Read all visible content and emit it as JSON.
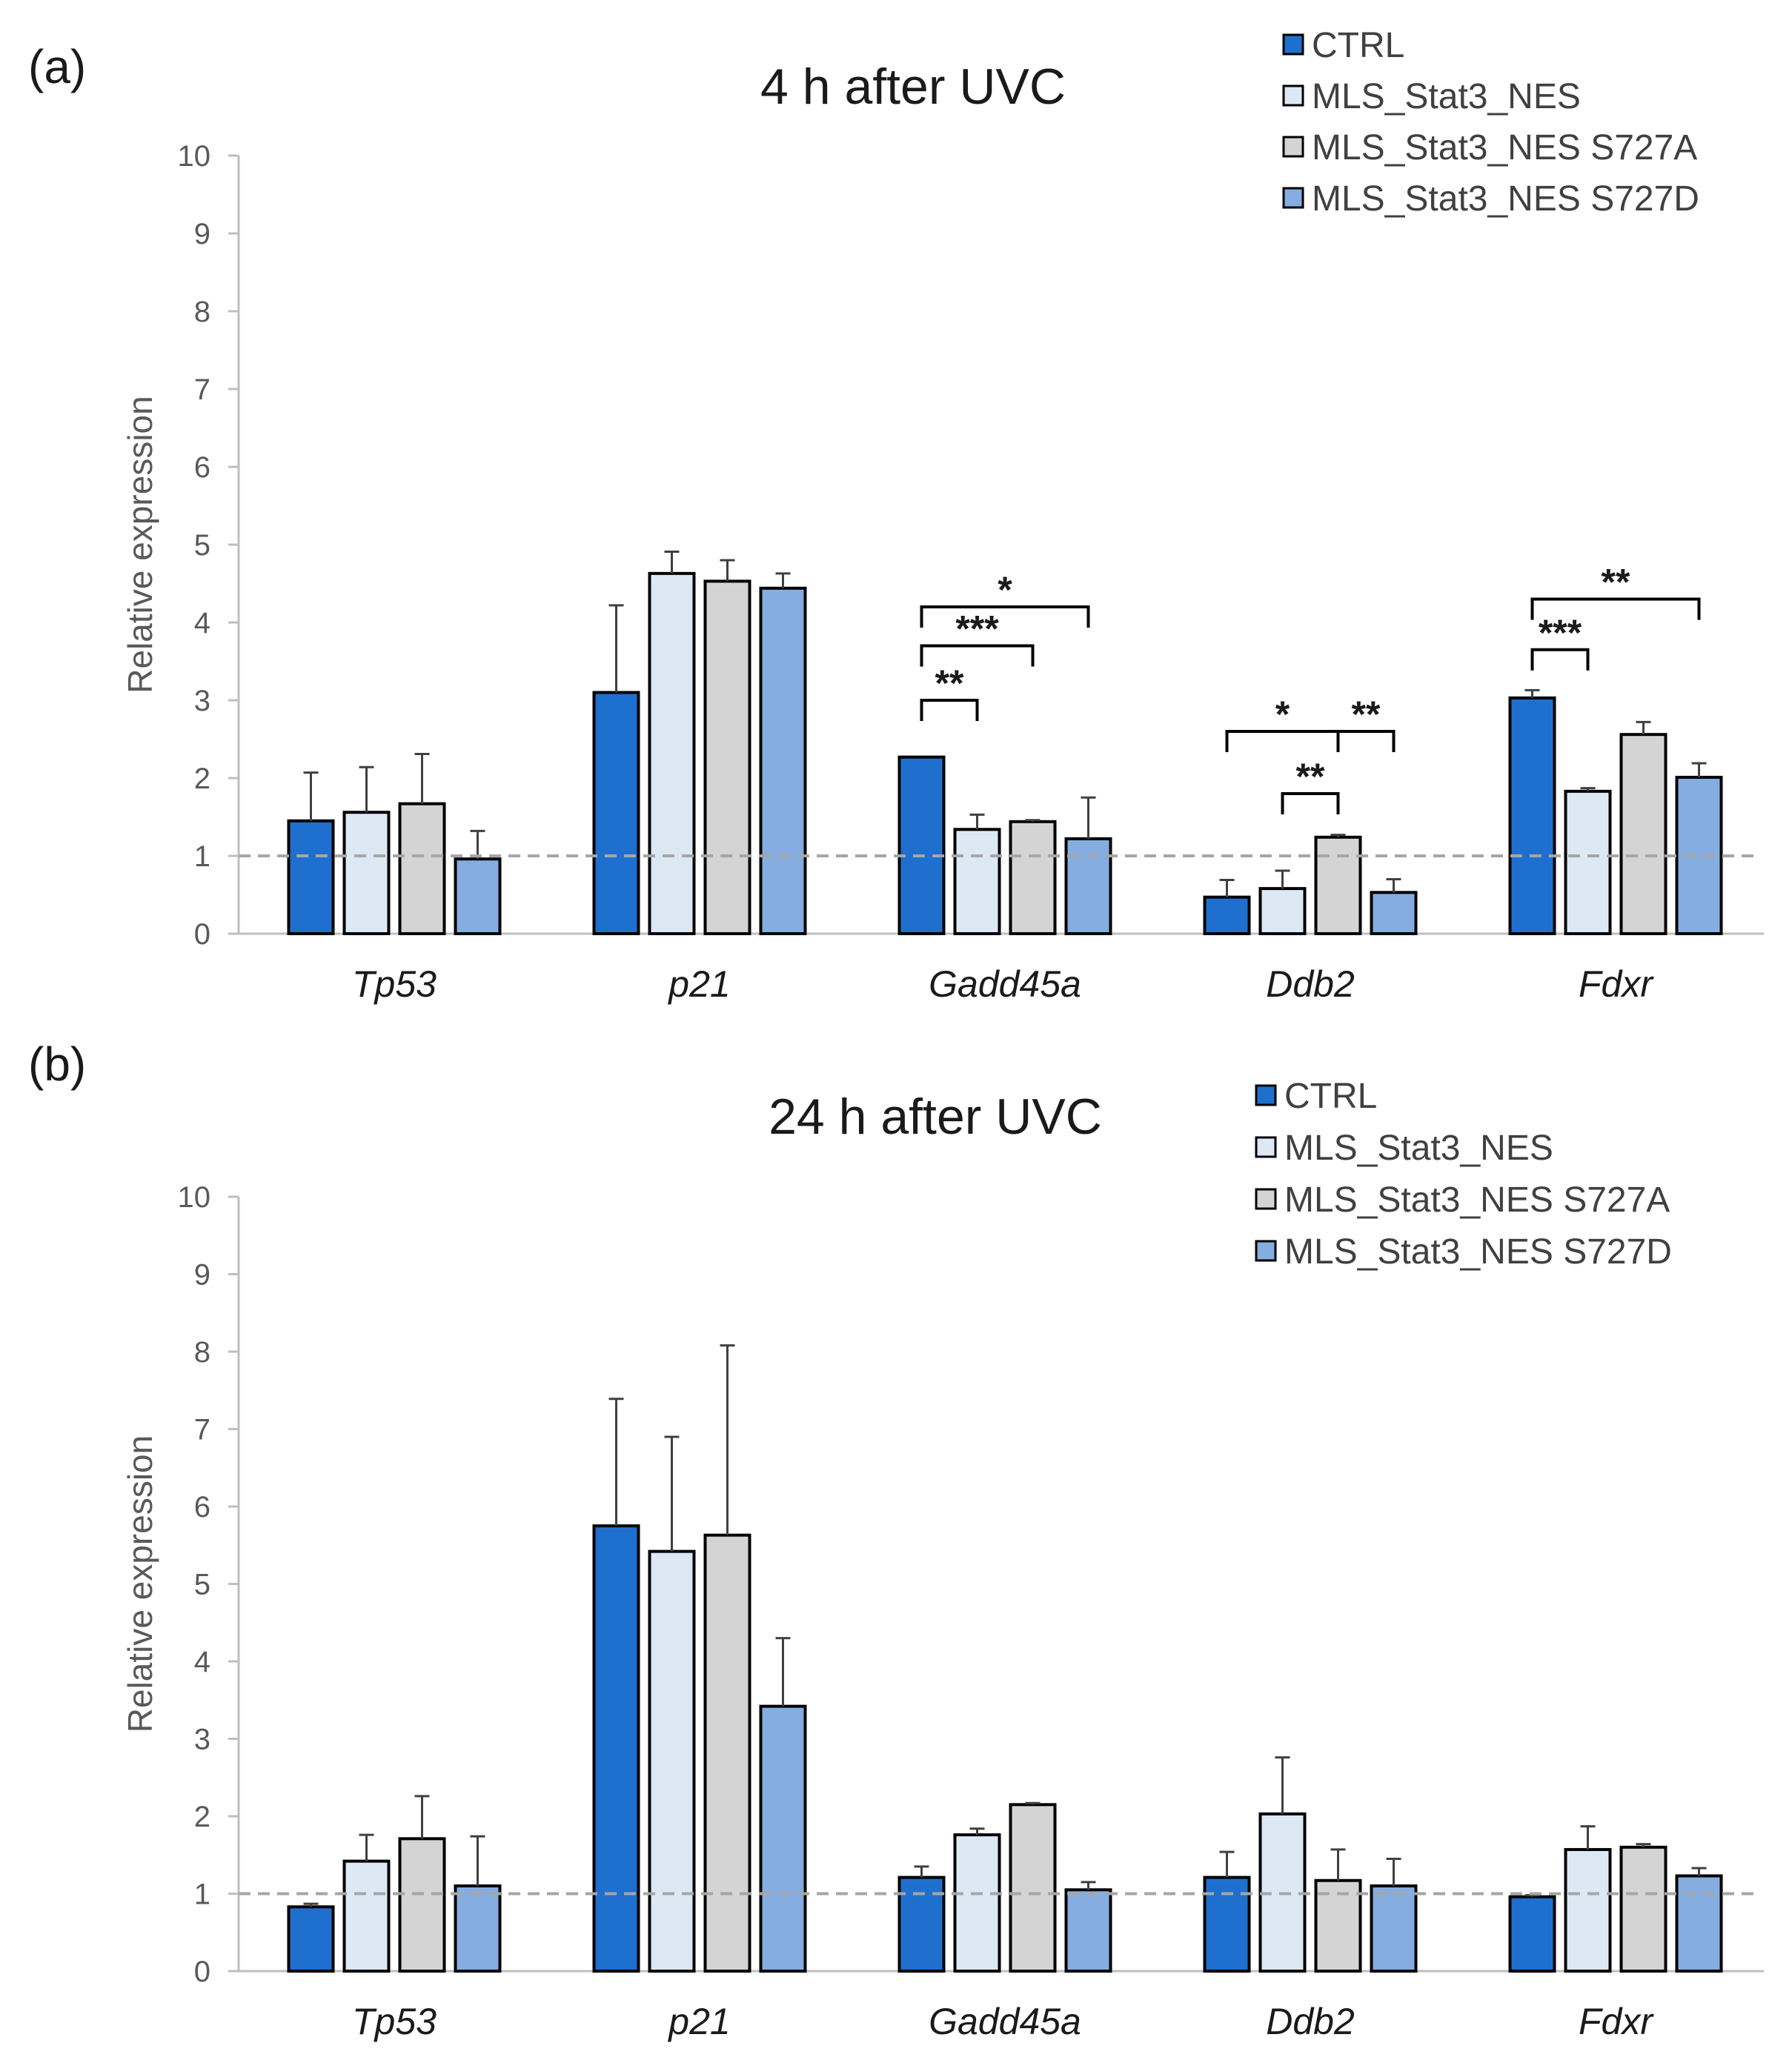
{
  "chart_data": [
    {
      "panel_label": "(a)",
      "type": "bar",
      "title": "4 h after UVC",
      "xlabel": "",
      "ylabel": "Relative expression",
      "ylim": [
        0,
        10
      ],
      "yticks": [
        0,
        1,
        2,
        3,
        4,
        5,
        6,
        7,
        8,
        9,
        10
      ],
      "reference_line": 1,
      "categories": [
        "Tp53",
        "p21",
        "Gadd45a",
        "Ddb2",
        "Fdxr"
      ],
      "series": [
        {
          "name": "CTRL",
          "color": "#1f6fce",
          "values": [
            1.45,
            3.1,
            2.27,
            0.47,
            3.03
          ],
          "errors": [
            0.62,
            1.12,
            0.0,
            0.22,
            0.1
          ]
        },
        {
          "name": "MLS_Stat3_NES",
          "color": "#dde8f5",
          "values": [
            1.56,
            4.63,
            1.34,
            0.58,
            1.83
          ],
          "errors": [
            0.58,
            0.28,
            0.19,
            0.23,
            0.04
          ]
        },
        {
          "name": "MLS_Stat3_NES S727A",
          "color": "#d4d4d4",
          "values": [
            1.67,
            4.53,
            1.44,
            1.24,
            2.56
          ],
          "errors": [
            0.64,
            0.27,
            0.02,
            0.03,
            0.16
          ]
        },
        {
          "name": "MLS_Stat3_NES S727D",
          "color": "#85ade0",
          "values": [
            0.96,
            4.44,
            1.22,
            0.53,
            2.01
          ],
          "errors": [
            0.36,
            0.19,
            0.53,
            0.17,
            0.18
          ]
        }
      ],
      "legend_position": "top-right",
      "significance": [
        {
          "category": "Gadd45a",
          "from_series": 0,
          "to_series": 1,
          "label": "**",
          "level": 3.0
        },
        {
          "category": "Gadd45a",
          "from_series": 0,
          "to_series": 2,
          "label": "***",
          "level": 3.7
        },
        {
          "category": "Gadd45a",
          "from_series": 0,
          "to_series": 3,
          "label": "*",
          "level": 4.2
        },
        {
          "category": "Ddb2",
          "from_series": 0,
          "to_series": 2,
          "label": "*",
          "level": 2.6
        },
        {
          "category": "Ddb2",
          "from_series": 2,
          "to_series": 3,
          "label": "**",
          "level": 2.6
        },
        {
          "category": "Ddb2",
          "from_series": 1,
          "to_series": 2,
          "label": "**",
          "level": 1.8
        },
        {
          "category": "Fdxr",
          "from_series": 0,
          "to_series": 1,
          "label": "***",
          "level": 3.65
        },
        {
          "category": "Fdxr",
          "from_series": 0,
          "to_series": 3,
          "label": "**",
          "level": 4.3
        }
      ]
    },
    {
      "panel_label": "(b)",
      "type": "bar",
      "title": "24 h after UVC",
      "xlabel": "",
      "ylabel": "Relative expression",
      "ylim": [
        0,
        10
      ],
      "yticks": [
        0,
        1,
        2,
        3,
        4,
        5,
        6,
        7,
        8,
        9,
        10
      ],
      "reference_line": 1,
      "categories": [
        "Tp53",
        "p21",
        "Gadd45a",
        "Ddb2",
        "Fdxr"
      ],
      "series": [
        {
          "name": "CTRL",
          "color": "#1f6fce",
          "values": [
            0.83,
            5.75,
            1.21,
            1.21,
            0.96
          ],
          "errors": [
            0.04,
            1.64,
            0.14,
            0.33,
            0.02
          ]
        },
        {
          "name": "MLS_Stat3_NES",
          "color": "#dde8f5",
          "values": [
            1.42,
            5.42,
            1.76,
            2.03,
            1.57
          ],
          "errors": [
            0.34,
            1.48,
            0.08,
            0.73,
            0.3
          ]
        },
        {
          "name": "MLS_Stat3_NES S727A",
          "color": "#d4d4d4",
          "values": [
            1.71,
            5.63,
            2.15,
            1.17,
            1.6
          ],
          "errors": [
            0.55,
            2.45,
            0.02,
            0.4,
            0.04
          ]
        },
        {
          "name": "MLS_Stat3_NES S727D",
          "color": "#85ade0",
          "values": [
            1.1,
            3.42,
            1.05,
            1.1,
            1.23
          ],
          "errors": [
            0.64,
            0.88,
            0.1,
            0.35,
            0.1
          ]
        }
      ],
      "legend_position": "top-right",
      "significance": []
    }
  ]
}
